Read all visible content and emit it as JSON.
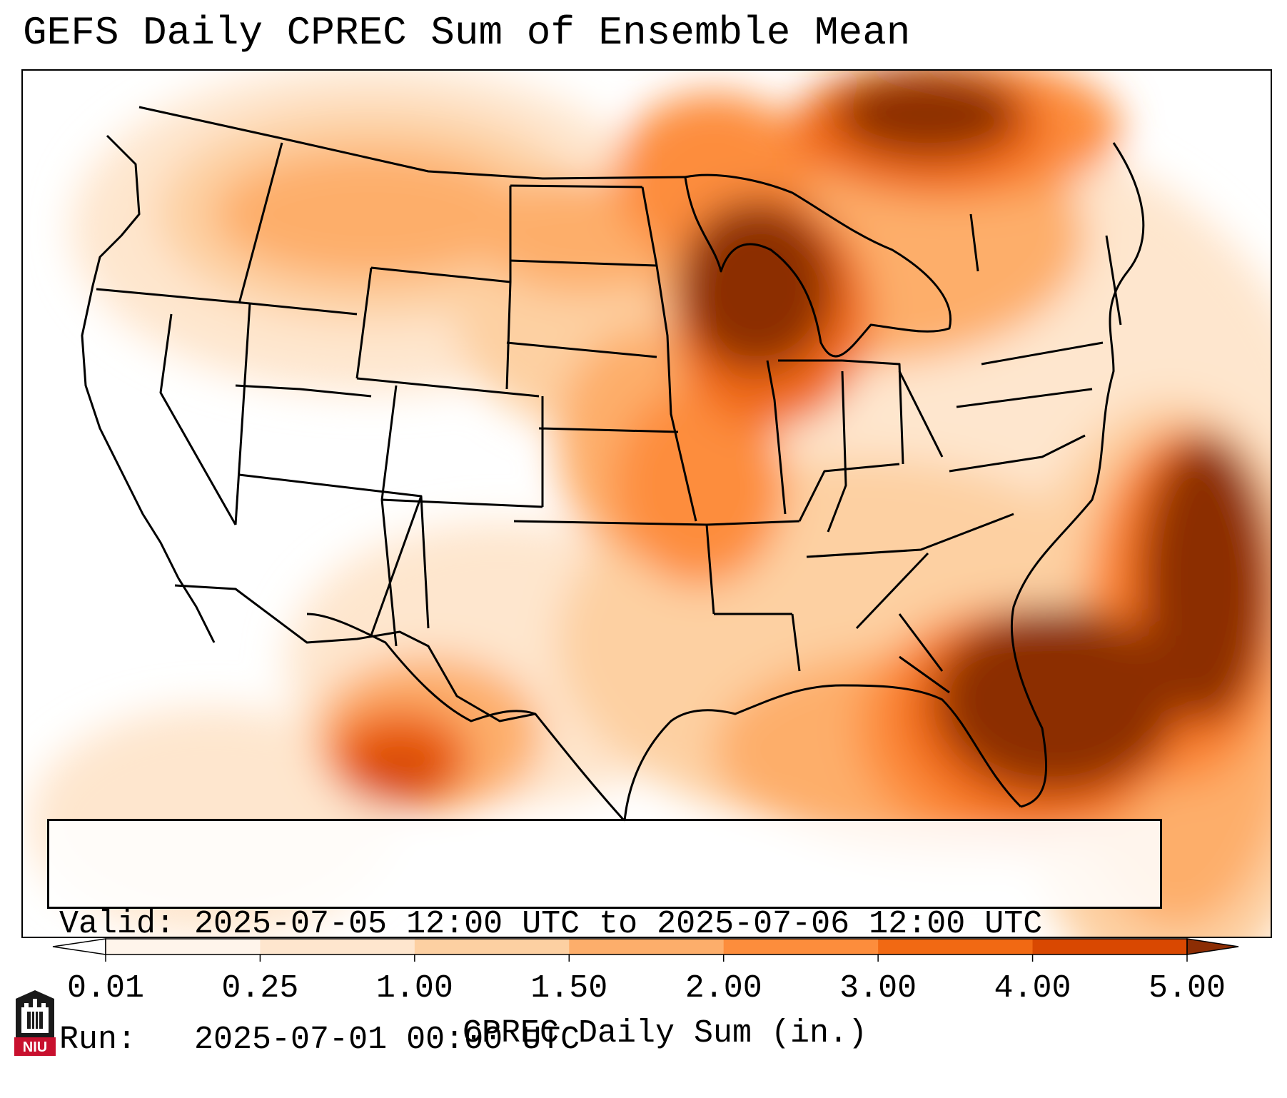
{
  "title": "GEFS Daily CPREC Sum of Ensemble Mean",
  "info": {
    "valid_line": "Valid: 2025-07-05 12:00 UTC to 2025-07-06 12:00 UTC",
    "run_line": "Run:   2025-07-01 00:00 UTC"
  },
  "colorbar": {
    "label": "CPREC Daily Sum (in.)",
    "ticks": [
      "0.01",
      "0.25",
      "1.00",
      "1.50",
      "2.00",
      "3.00",
      "4.00",
      "5.00"
    ],
    "colors": [
      "#fff5eb",
      "#fee6ce",
      "#fdd0a2",
      "#fdae6b",
      "#fd8d3c",
      "#f16913",
      "#d94801",
      "#8c2d04"
    ],
    "under_color": "#ffffff",
    "extend": "both"
  },
  "logo": {
    "text": "NIU",
    "icon": "university-tower-icon",
    "color": "#c8102e"
  }
}
